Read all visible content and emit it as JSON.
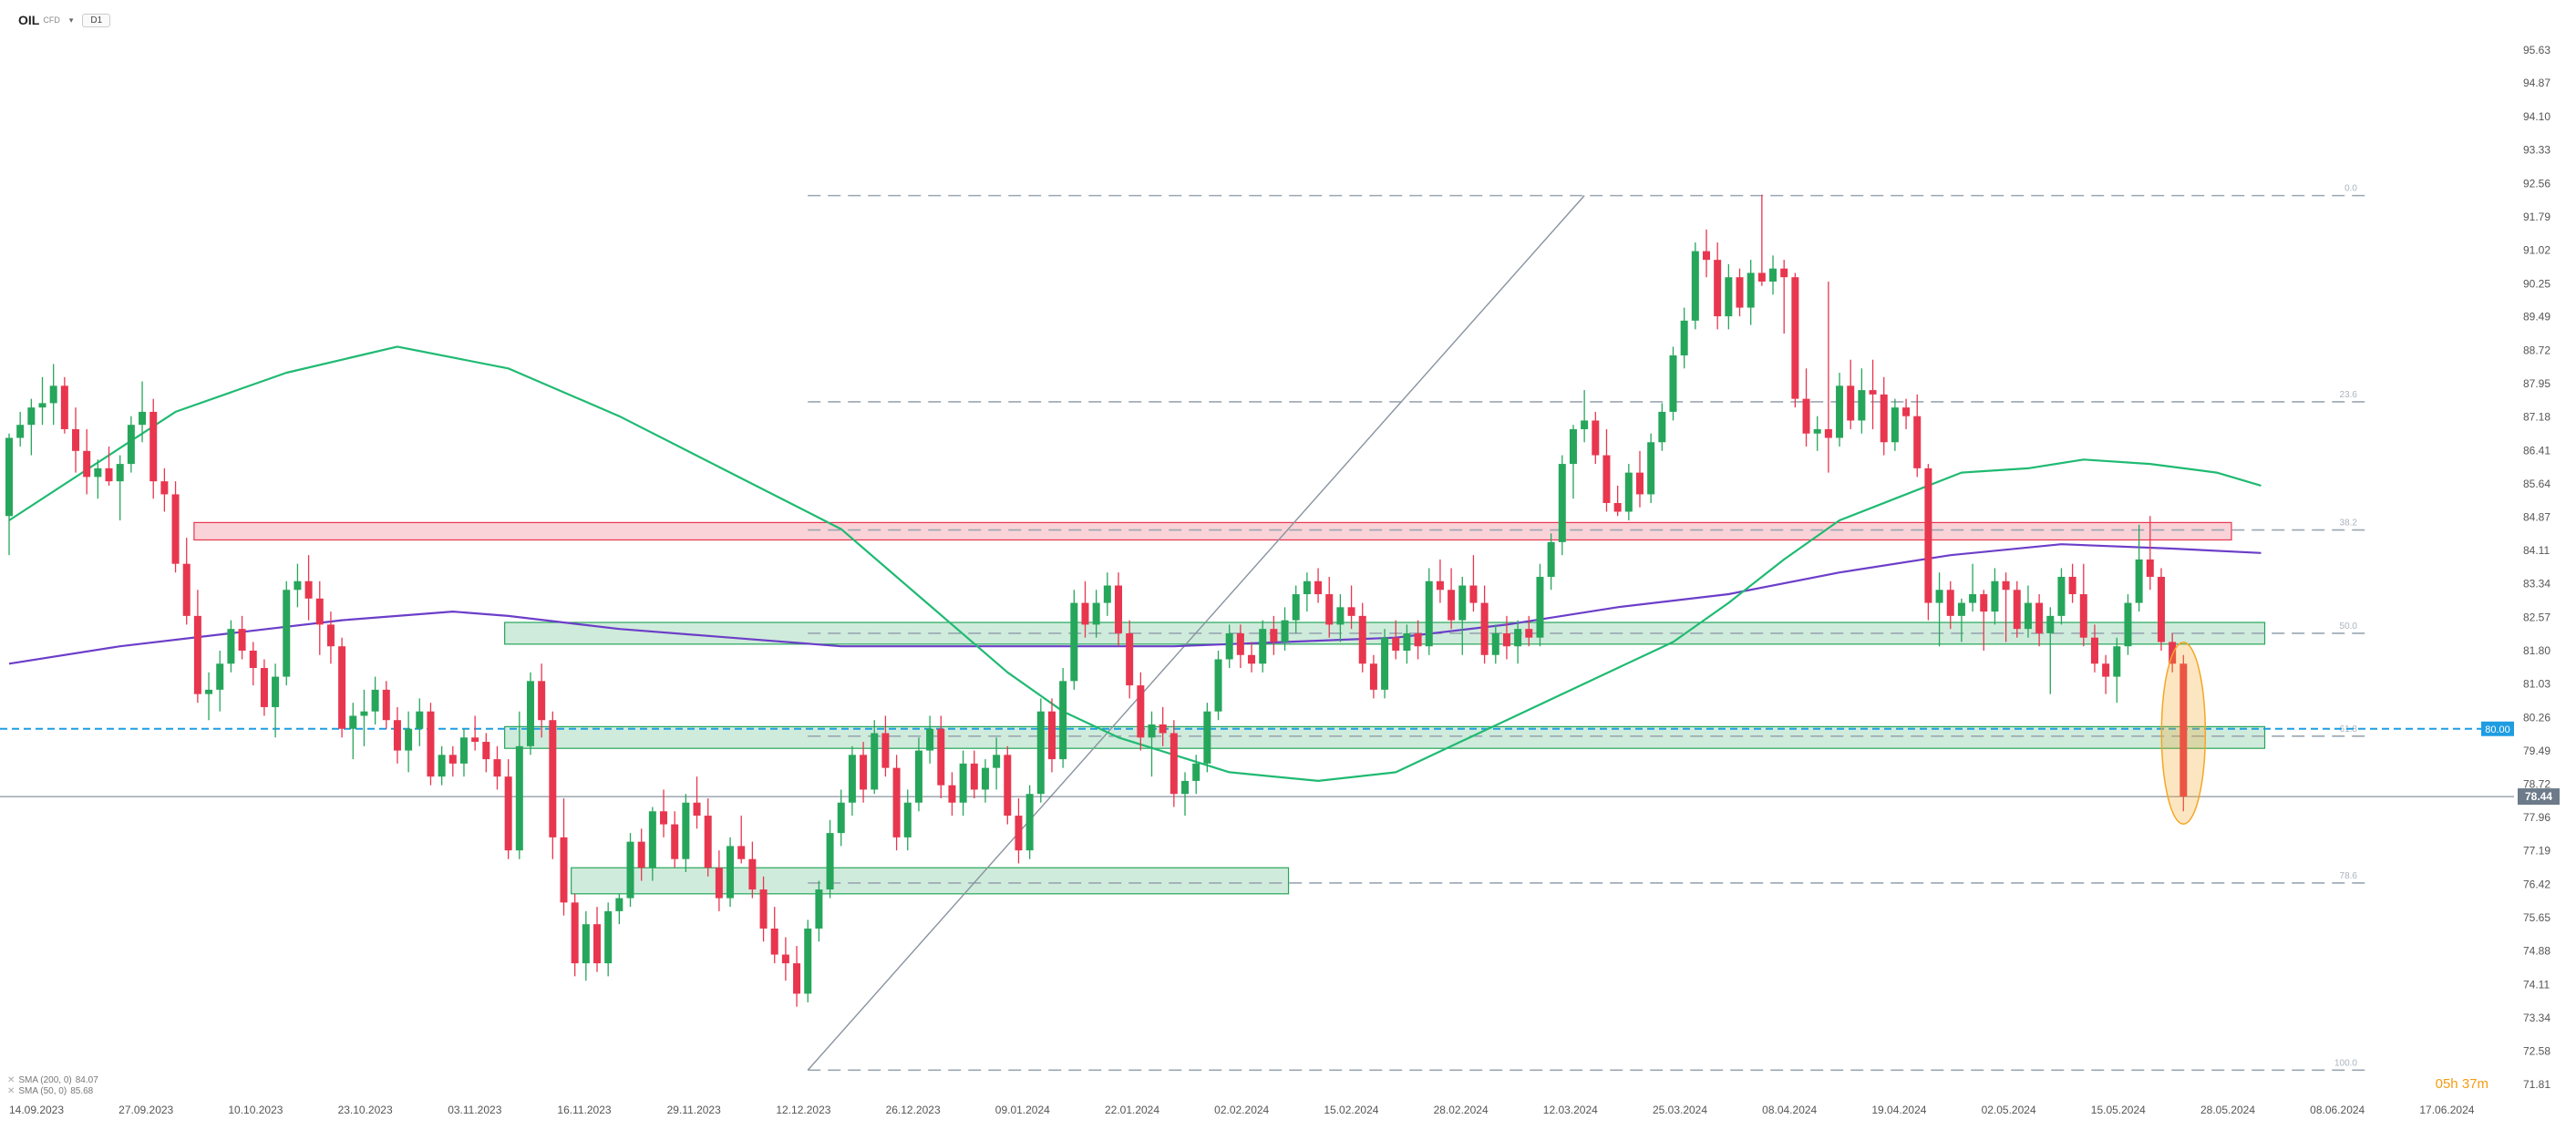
{
  "toolbar": {
    "symbol": "OIL",
    "symbol_sub": "CFD",
    "timeframe": "D1"
  },
  "legend": [
    {
      "label": "SMA (200, 0)",
      "value": "84.07"
    },
    {
      "label": "SMA (50, 0)",
      "value": "85.68"
    }
  ],
  "timer": "05h 37m",
  "colors": {
    "up": "#26a65b",
    "down": "#e8364f",
    "sma50": "#1fba72",
    "sma200": "#6c3ec9",
    "price": "#6c7a89",
    "level": "#1e9de2"
  },
  "price_axis": {
    "ticks": [
      "95.63",
      "94.87",
      "94.10",
      "93.33",
      "92.56",
      "91.79",
      "91.02",
      "90.25",
      "89.49",
      "88.72",
      "87.95",
      "87.18",
      "86.41",
      "85.64",
      "84.87",
      "84.11",
      "83.34",
      "82.57",
      "81.80",
      "81.03",
      "80.26",
      "79.49",
      "78.72",
      "77.96",
      "77.19",
      "76.42",
      "75.65",
      "74.88",
      "74.11",
      "73.34",
      "72.58",
      "71.81"
    ]
  },
  "time_axis": {
    "labels": [
      "14.09.2023",
      "27.09.2023",
      "10.10.2023",
      "23.10.2023",
      "03.11.2023",
      "16.11.2023",
      "29.11.2023",
      "12.12.2023",
      "26.12.2023",
      "09.01.2024",
      "22.01.2024",
      "02.02.2024",
      "15.02.2024",
      "28.02.2024",
      "12.03.2024",
      "25.03.2024",
      "08.04.2024",
      "19.04.2024",
      "02.05.2024",
      "15.05.2024",
      "28.05.2024",
      "08.06.2024",
      "17.06.2024"
    ]
  },
  "price_tags": {
    "current": "78.44",
    "level": "80.00"
  },
  "chart_data": {
    "type": "candlestick",
    "ylim": [
      71.5,
      96.1
    ],
    "fib_levels": [
      {
        "label": "0.0",
        "value": 92.28
      },
      {
        "label": "23.6",
        "value": 87.53
      },
      {
        "label": "38.2",
        "value": 84.58
      },
      {
        "label": "50.0",
        "value": 82.2
      },
      {
        "label": "61.8",
        "value": 79.83
      },
      {
        "label": "78.6",
        "value": 76.45
      },
      {
        "label": "100.0",
        "value": 72.14
      }
    ],
    "zones": [
      {
        "color": "red",
        "from": 84.35,
        "to": 84.75,
        "i_start": 17,
        "i_end": 200
      },
      {
        "color": "green",
        "from": 81.95,
        "to": 82.45,
        "i_start": 45,
        "i_end": 203
      },
      {
        "color": "green",
        "from": 79.55,
        "to": 80.05,
        "i_start": 45,
        "i_end": 203
      },
      {
        "color": "green",
        "from": 76.2,
        "to": 76.8,
        "i_start": 51,
        "i_end": 115
      }
    ],
    "horizontal_line": 80.0,
    "current_price": 78.44,
    "trendline": {
      "from": {
        "i": 72,
        "y": 72.14
      },
      "to": {
        "i": 142,
        "y": 92.28
      }
    },
    "highlight_last_candle": true,
    "candles": [
      [
        84.9,
        86.8,
        84.0,
        86.7
      ],
      [
        86.7,
        87.3,
        86.5,
        87.0
      ],
      [
        87.0,
        87.6,
        86.3,
        87.4
      ],
      [
        87.4,
        88.1,
        87.0,
        87.5
      ],
      [
        87.5,
        88.4,
        87.0,
        87.9
      ],
      [
        87.9,
        88.1,
        86.8,
        86.9
      ],
      [
        86.9,
        87.4,
        85.9,
        86.4
      ],
      [
        86.4,
        86.9,
        85.4,
        85.8
      ],
      [
        85.8,
        86.2,
        85.3,
        86.0
      ],
      [
        86.0,
        86.5,
        85.6,
        85.7
      ],
      [
        85.7,
        86.3,
        84.8,
        86.1
      ],
      [
        86.1,
        87.2,
        85.9,
        87.0
      ],
      [
        87.0,
        88.0,
        86.6,
        87.3
      ],
      [
        87.3,
        87.6,
        85.3,
        85.7
      ],
      [
        85.7,
        86.0,
        85.0,
        85.4
      ],
      [
        85.4,
        85.7,
        83.6,
        83.8
      ],
      [
        83.8,
        84.4,
        82.4,
        82.6
      ],
      [
        82.6,
        83.2,
        80.6,
        80.8
      ],
      [
        80.8,
        81.3,
        80.2,
        80.9
      ],
      [
        80.9,
        81.8,
        80.4,
        81.5
      ],
      [
        81.5,
        82.5,
        81.3,
        82.3
      ],
      [
        82.3,
        82.6,
        81.6,
        81.8
      ],
      [
        81.8,
        82.0,
        81.0,
        81.4
      ],
      [
        81.4,
        81.6,
        80.3,
        80.5
      ],
      [
        80.5,
        81.5,
        79.8,
        81.2
      ],
      [
        81.2,
        83.4,
        81.0,
        83.2
      ],
      [
        83.2,
        83.8,
        82.8,
        83.4
      ],
      [
        83.4,
        84.0,
        82.5,
        83.0
      ],
      [
        83.0,
        83.4,
        81.7,
        82.4
      ],
      [
        82.4,
        82.7,
        81.5,
        81.9
      ],
      [
        81.9,
        82.1,
        79.8,
        80.0
      ],
      [
        80.0,
        80.6,
        79.3,
        80.3
      ],
      [
        80.3,
        80.9,
        79.6,
        80.4
      ],
      [
        80.4,
        81.2,
        80.1,
        80.9
      ],
      [
        80.9,
        81.1,
        80.0,
        80.2
      ],
      [
        80.2,
        80.5,
        79.2,
        79.5
      ],
      [
        79.5,
        80.4,
        79.0,
        80.0
      ],
      [
        80.0,
        80.7,
        79.6,
        80.4
      ],
      [
        80.4,
        80.6,
        78.7,
        78.9
      ],
      [
        78.9,
        79.6,
        78.7,
        79.4
      ],
      [
        79.4,
        79.6,
        78.9,
        79.2
      ],
      [
        79.2,
        80.0,
        78.9,
        79.8
      ],
      [
        79.8,
        80.3,
        79.5,
        79.7
      ],
      [
        79.7,
        79.9,
        79.0,
        79.3
      ],
      [
        79.3,
        79.6,
        78.6,
        78.9
      ],
      [
        78.9,
        79.3,
        77.0,
        77.2
      ],
      [
        77.2,
        80.4,
        77.0,
        79.6
      ],
      [
        79.6,
        81.3,
        79.4,
        81.1
      ],
      [
        81.1,
        81.5,
        79.8,
        80.2
      ],
      [
        80.2,
        80.4,
        77.0,
        77.5
      ],
      [
        77.5,
        78.4,
        75.7,
        76.0
      ],
      [
        76.0,
        76.2,
        74.3,
        74.6
      ],
      [
        74.6,
        75.8,
        74.2,
        75.5
      ],
      [
        75.5,
        75.9,
        74.4,
        74.6
      ],
      [
        74.6,
        76.0,
        74.3,
        75.8
      ],
      [
        75.8,
        76.2,
        75.5,
        76.1
      ],
      [
        76.1,
        77.6,
        75.9,
        77.4
      ],
      [
        77.4,
        77.7,
        76.5,
        76.8
      ],
      [
        76.8,
        78.2,
        76.5,
        78.1
      ],
      [
        78.1,
        78.6,
        77.5,
        77.8
      ],
      [
        77.8,
        78.1,
        76.8,
        77.0
      ],
      [
        77.0,
        78.5,
        76.7,
        78.3
      ],
      [
        78.3,
        78.9,
        77.7,
        78.0
      ],
      [
        78.0,
        78.4,
        76.6,
        76.8
      ],
      [
        76.8,
        77.2,
        75.8,
        76.1
      ],
      [
        76.1,
        77.5,
        75.9,
        77.3
      ],
      [
        77.3,
        78.0,
        76.9,
        77.0
      ],
      [
        77.0,
        77.4,
        76.1,
        76.3
      ],
      [
        76.3,
        76.6,
        75.1,
        75.4
      ],
      [
        75.4,
        75.9,
        74.6,
        74.8
      ],
      [
        74.8,
        75.2,
        74.2,
        74.6
      ],
      [
        74.6,
        75.0,
        73.6,
        73.9
      ],
      [
        73.9,
        75.6,
        73.7,
        75.4
      ],
      [
        75.4,
        76.5,
        75.1,
        76.3
      ],
      [
        76.3,
        77.9,
        76.1,
        77.6
      ],
      [
        77.6,
        78.6,
        77.3,
        78.3
      ],
      [
        78.3,
        79.6,
        78.0,
        79.4
      ],
      [
        79.4,
        79.7,
        78.3,
        78.6
      ],
      [
        78.6,
        80.2,
        78.5,
        79.9
      ],
      [
        79.9,
        80.3,
        78.9,
        79.1
      ],
      [
        79.1,
        79.4,
        77.2,
        77.5
      ],
      [
        77.5,
        78.6,
        77.2,
        78.3
      ],
      [
        78.3,
        79.8,
        78.1,
        79.5
      ],
      [
        79.5,
        80.3,
        79.2,
        80.0
      ],
      [
        80.0,
        80.3,
        78.4,
        78.7
      ],
      [
        78.7,
        79.0,
        78.0,
        78.3
      ],
      [
        78.3,
        79.5,
        78.0,
        79.2
      ],
      [
        79.2,
        79.5,
        78.4,
        78.6
      ],
      [
        78.6,
        79.3,
        78.3,
        79.1
      ],
      [
        79.1,
        79.8,
        78.6,
        79.4
      ],
      [
        79.4,
        79.6,
        77.8,
        78.0
      ],
      [
        78.0,
        78.4,
        76.9,
        77.2
      ],
      [
        77.2,
        78.7,
        77.0,
        78.5
      ],
      [
        78.5,
        80.7,
        78.3,
        80.4
      ],
      [
        80.4,
        80.7,
        79.0,
        79.3
      ],
      [
        79.3,
        81.4,
        79.1,
        81.1
      ],
      [
        81.1,
        83.2,
        80.9,
        82.9
      ],
      [
        82.9,
        83.4,
        82.1,
        82.4
      ],
      [
        82.4,
        83.2,
        82.1,
        82.9
      ],
      [
        82.9,
        83.6,
        82.6,
        83.3
      ],
      [
        83.3,
        83.6,
        81.9,
        82.2
      ],
      [
        82.2,
        82.5,
        80.7,
        81.0
      ],
      [
        81.0,
        81.3,
        79.5,
        79.8
      ],
      [
        79.8,
        80.4,
        78.9,
        80.1
      ],
      [
        80.1,
        80.5,
        79.6,
        79.9
      ],
      [
        79.9,
        80.2,
        78.2,
        78.5
      ],
      [
        78.5,
        79.0,
        78.0,
        78.8
      ],
      [
        78.8,
        79.4,
        78.5,
        79.2
      ],
      [
        79.2,
        80.6,
        79.0,
        80.4
      ],
      [
        80.4,
        81.8,
        80.2,
        81.6
      ],
      [
        81.6,
        82.4,
        81.4,
        82.2
      ],
      [
        82.2,
        82.4,
        81.4,
        81.7
      ],
      [
        81.7,
        82.0,
        81.3,
        81.5
      ],
      [
        81.5,
        82.5,
        81.3,
        82.3
      ],
      [
        82.3,
        82.6,
        81.7,
        82.0
      ],
      [
        82.0,
        82.8,
        81.8,
        82.5
      ],
      [
        82.5,
        83.3,
        82.2,
        83.1
      ],
      [
        83.1,
        83.6,
        82.7,
        83.4
      ],
      [
        83.4,
        83.7,
        82.9,
        83.1
      ],
      [
        83.1,
        83.5,
        82.1,
        82.4
      ],
      [
        82.4,
        83.1,
        82.0,
        82.8
      ],
      [
        82.8,
        83.3,
        82.3,
        82.6
      ],
      [
        82.6,
        82.9,
        81.3,
        81.5
      ],
      [
        81.5,
        81.7,
        80.7,
        80.9
      ],
      [
        80.9,
        82.3,
        80.7,
        82.1
      ],
      [
        82.1,
        82.5,
        81.6,
        81.8
      ],
      [
        81.8,
        82.4,
        81.5,
        82.2
      ],
      [
        82.2,
        82.5,
        81.6,
        81.9
      ],
      [
        81.9,
        83.7,
        81.7,
        83.4
      ],
      [
        83.4,
        83.9,
        82.9,
        83.2
      ],
      [
        83.2,
        83.7,
        82.3,
        82.5
      ],
      [
        82.5,
        83.5,
        81.7,
        83.3
      ],
      [
        83.3,
        84.0,
        82.7,
        82.9
      ],
      [
        82.9,
        83.3,
        81.5,
        81.7
      ],
      [
        81.7,
        82.4,
        81.5,
        82.2
      ],
      [
        82.2,
        82.6,
        81.6,
        81.9
      ],
      [
        81.9,
        82.5,
        81.5,
        82.3
      ],
      [
        82.3,
        82.6,
        81.9,
        82.1
      ],
      [
        82.1,
        83.8,
        81.9,
        83.5
      ],
      [
        83.5,
        84.5,
        83.2,
        84.3
      ],
      [
        84.3,
        86.3,
        84.0,
        86.1
      ],
      [
        86.1,
        87.0,
        85.3,
        86.9
      ],
      [
        86.9,
        87.8,
        86.6,
        87.1
      ],
      [
        87.1,
        87.3,
        86.1,
        86.3
      ],
      [
        86.3,
        86.9,
        85.0,
        85.2
      ],
      [
        85.2,
        85.6,
        84.9,
        85.0
      ],
      [
        85.0,
        86.1,
        84.8,
        85.9
      ],
      [
        85.9,
        86.4,
        85.1,
        85.4
      ],
      [
        85.4,
        86.8,
        85.2,
        86.6
      ],
      [
        86.6,
        87.5,
        86.4,
        87.3
      ],
      [
        87.3,
        88.8,
        87.1,
        88.6
      ],
      [
        88.6,
        89.7,
        88.3,
        89.4
      ],
      [
        89.4,
        91.2,
        89.2,
        91.0
      ],
      [
        91.0,
        91.5,
        90.4,
        90.8
      ],
      [
        90.8,
        91.2,
        89.2,
        89.5
      ],
      [
        89.5,
        90.7,
        89.2,
        90.4
      ],
      [
        90.4,
        90.6,
        89.5,
        89.7
      ],
      [
        89.7,
        90.8,
        89.3,
        90.5
      ],
      [
        90.5,
        92.3,
        90.2,
        90.3
      ],
      [
        90.3,
        90.9,
        90.0,
        90.6
      ],
      [
        90.6,
        90.8,
        89.1,
        90.4
      ],
      [
        90.4,
        90.5,
        87.4,
        87.6
      ],
      [
        87.6,
        88.3,
        86.5,
        86.8
      ],
      [
        86.8,
        87.2,
        86.4,
        86.9
      ],
      [
        86.9,
        90.3,
        85.9,
        86.7
      ],
      [
        86.7,
        88.2,
        86.5,
        87.9
      ],
      [
        87.9,
        88.5,
        86.9,
        87.1
      ],
      [
        87.1,
        88.3,
        86.8,
        87.8
      ],
      [
        87.8,
        88.5,
        86.9,
        87.7
      ],
      [
        87.7,
        88.1,
        86.3,
        86.6
      ],
      [
        86.6,
        87.6,
        86.4,
        87.4
      ],
      [
        87.4,
        87.6,
        86.9,
        87.2
      ],
      [
        87.2,
        87.7,
        85.8,
        86.0
      ],
      [
        86.0,
        86.1,
        82.5,
        82.9
      ],
      [
        82.9,
        83.6,
        81.9,
        83.2
      ],
      [
        83.2,
        83.4,
        82.3,
        82.6
      ],
      [
        82.6,
        83.0,
        82.0,
        82.9
      ],
      [
        82.9,
        83.8,
        82.7,
        83.1
      ],
      [
        83.1,
        83.2,
        81.8,
        82.7
      ],
      [
        82.7,
        83.7,
        82.4,
        83.4
      ],
      [
        83.4,
        83.6,
        82.0,
        83.2
      ],
      [
        83.2,
        83.4,
        82.1,
        82.3
      ],
      [
        82.3,
        83.3,
        82.1,
        82.9
      ],
      [
        82.9,
        83.1,
        81.9,
        82.2
      ],
      [
        82.2,
        82.8,
        80.8,
        82.6
      ],
      [
        82.6,
        83.7,
        82.4,
        83.5
      ],
      [
        83.5,
        83.8,
        82.9,
        83.1
      ],
      [
        83.1,
        83.8,
        81.9,
        82.1
      ],
      [
        82.1,
        82.4,
        81.3,
        81.5
      ],
      [
        81.5,
        81.7,
        80.8,
        81.2
      ],
      [
        81.2,
        82.1,
        80.6,
        81.9
      ],
      [
        81.9,
        83.1,
        81.7,
        82.9
      ],
      [
        82.9,
        84.7,
        82.7,
        83.9
      ],
      [
        83.9,
        84.9,
        83.2,
        83.5
      ],
      [
        83.5,
        83.7,
        81.8,
        82.0
      ],
      [
        82.0,
        82.2,
        81.3,
        81.5
      ],
      [
        81.5,
        81.7,
        78.1,
        78.44
      ]
    ],
    "sma50": [
      [
        0,
        84.8
      ],
      [
        15,
        87.3
      ],
      [
        25,
        88.2
      ],
      [
        35,
        88.8
      ],
      [
        45,
        88.3
      ],
      [
        55,
        87.2
      ],
      [
        65,
        85.9
      ],
      [
        75,
        84.6
      ],
      [
        80,
        83.5
      ],
      [
        85,
        82.4
      ],
      [
        90,
        81.3
      ],
      [
        95,
        80.4
      ],
      [
        100,
        79.8
      ],
      [
        105,
        79.4
      ],
      [
        110,
        79.0
      ],
      [
        118,
        78.8
      ],
      [
        125,
        79.0
      ],
      [
        130,
        79.6
      ],
      [
        135,
        80.2
      ],
      [
        140,
        80.8
      ],
      [
        145,
        81.4
      ],
      [
        150,
        82.0
      ],
      [
        155,
        82.9
      ],
      [
        160,
        83.9
      ],
      [
        165,
        84.8
      ],
      [
        170,
        85.3
      ],
      [
        176,
        85.9
      ],
      [
        182,
        86.0
      ],
      [
        187,
        86.2
      ],
      [
        193,
        86.1
      ],
      [
        199,
        85.9
      ],
      [
        203,
        85.6
      ]
    ],
    "sma200": [
      [
        0,
        81.5
      ],
      [
        10,
        81.9
      ],
      [
        20,
        82.2
      ],
      [
        30,
        82.5
      ],
      [
        40,
        82.7
      ],
      [
        45,
        82.6
      ],
      [
        55,
        82.3
      ],
      [
        65,
        82.1
      ],
      [
        75,
        81.9
      ],
      [
        85,
        81.9
      ],
      [
        95,
        81.9
      ],
      [
        105,
        81.9
      ],
      [
        115,
        82.0
      ],
      [
        125,
        82.1
      ],
      [
        135,
        82.4
      ],
      [
        145,
        82.8
      ],
      [
        155,
        83.1
      ],
      [
        165,
        83.6
      ],
      [
        175,
        84.0
      ],
      [
        185,
        84.25
      ],
      [
        195,
        84.15
      ],
      [
        203,
        84.05
      ]
    ]
  }
}
